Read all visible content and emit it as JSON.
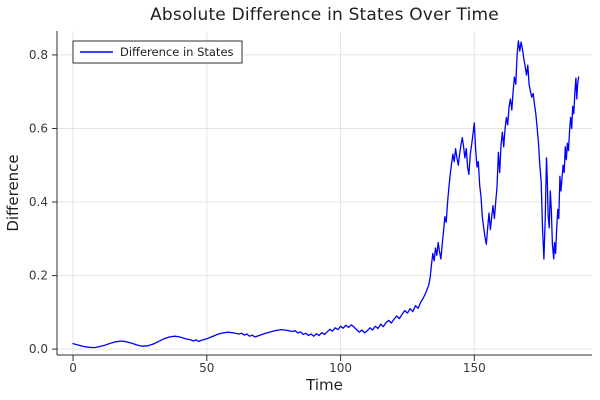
{
  "chart_data": {
    "type": "line",
    "title": "Absolute Difference in States Over Time",
    "xlabel": "Time",
    "ylabel": "Difference",
    "xlim": [
      -6,
      194
    ],
    "ylim": [
      -0.016,
      0.865
    ],
    "grid": true,
    "xticks": {
      "values": [
        0,
        50,
        100,
        150
      ],
      "labels": [
        "0",
        "50",
        "100",
        "150"
      ]
    },
    "yticks": {
      "values": [
        0.0,
        0.2,
        0.4,
        0.6,
        0.8
      ],
      "labels": [
        "0.0",
        "0.2",
        "0.4",
        "0.6",
        "0.8"
      ]
    },
    "legend": {
      "position": "top-left",
      "entries": [
        {
          "label": "Difference in States",
          "color": "#0000ff"
        }
      ]
    },
    "style": {
      "line_color": "#0000ff",
      "grid_color": "#e4e4e4",
      "axis_color": "#2f2f33",
      "text_color": "#1f1f1f",
      "tick_label_color": "#3a3a3a",
      "background": "#ffffff"
    },
    "series": [
      {
        "name": "Difference in States",
        "color": "#0000ff",
        "points": [
          [
            0,
            0.015
          ],
          [
            2,
            0.011
          ],
          [
            4,
            0.007
          ],
          [
            6,
            0.005
          ],
          [
            8,
            0.004
          ],
          [
            10,
            0.007
          ],
          [
            12,
            0.011
          ],
          [
            14,
            0.016
          ],
          [
            16,
            0.02
          ],
          [
            18,
            0.022
          ],
          [
            20,
            0.02
          ],
          [
            22,
            0.016
          ],
          [
            24,
            0.011
          ],
          [
            26,
            0.008
          ],
          [
            28,
            0.009
          ],
          [
            30,
            0.014
          ],
          [
            32,
            0.021
          ],
          [
            34,
            0.028
          ],
          [
            36,
            0.033
          ],
          [
            38,
            0.035
          ],
          [
            40,
            0.033
          ],
          [
            42,
            0.028
          ],
          [
            44,
            0.025
          ],
          [
            45,
            0.022
          ],
          [
            46,
            0.025
          ],
          [
            47,
            0.021
          ],
          [
            48,
            0.024
          ],
          [
            50,
            0.028
          ],
          [
            52,
            0.034
          ],
          [
            54,
            0.04
          ],
          [
            56,
            0.044
          ],
          [
            58,
            0.046
          ],
          [
            60,
            0.044
          ],
          [
            62,
            0.041
          ],
          [
            63,
            0.043
          ],
          [
            64,
            0.038
          ],
          [
            65,
            0.041
          ],
          [
            66,
            0.035
          ],
          [
            67,
            0.038
          ],
          [
            68,
            0.033
          ],
          [
            70,
            0.038
          ],
          [
            72,
            0.043
          ],
          [
            74,
            0.047
          ],
          [
            76,
            0.051
          ],
          [
            78,
            0.053
          ],
          [
            80,
            0.051
          ],
          [
            82,
            0.048
          ],
          [
            83,
            0.05
          ],
          [
            84,
            0.044
          ],
          [
            85,
            0.047
          ],
          [
            86,
            0.04
          ],
          [
            87,
            0.043
          ],
          [
            88,
            0.037
          ],
          [
            89,
            0.041
          ],
          [
            90,
            0.035
          ],
          [
            91,
            0.042
          ],
          [
            92,
            0.037
          ],
          [
            93,
            0.045
          ],
          [
            94,
            0.04
          ],
          [
            95,
            0.047
          ],
          [
            96,
            0.054
          ],
          [
            97,
            0.049
          ],
          [
            98,
            0.058
          ],
          [
            99,
            0.053
          ],
          [
            100,
            0.062
          ],
          [
            101,
            0.057
          ],
          [
            102,
            0.065
          ],
          [
            103,
            0.059
          ],
          [
            104,
            0.066
          ],
          [
            105,
            0.06
          ],
          [
            106,
            0.053
          ],
          [
            107,
            0.046
          ],
          [
            108,
            0.052
          ],
          [
            109,
            0.044
          ],
          [
            110,
            0.05
          ],
          [
            111,
            0.058
          ],
          [
            112,
            0.052
          ],
          [
            113,
            0.062
          ],
          [
            114,
            0.056
          ],
          [
            115,
            0.068
          ],
          [
            116,
            0.061
          ],
          [
            117,
            0.072
          ],
          [
            118,
            0.078
          ],
          [
            119,
            0.071
          ],
          [
            120,
            0.082
          ],
          [
            121,
            0.09
          ],
          [
            122,
            0.083
          ],
          [
            123,
            0.095
          ],
          [
            124,
            0.105
          ],
          [
            125,
            0.098
          ],
          [
            126,
            0.11
          ],
          [
            127,
            0.102
          ],
          [
            128,
            0.118
          ],
          [
            129,
            0.111
          ],
          [
            130,
            0.128
          ],
          [
            131,
            0.14
          ],
          [
            132,
            0.155
          ],
          [
            133,
            0.175
          ],
          [
            133.5,
            0.195
          ],
          [
            134,
            0.23
          ],
          [
            134.5,
            0.26
          ],
          [
            135,
            0.24
          ],
          [
            135.5,
            0.275
          ],
          [
            136,
            0.255
          ],
          [
            136.5,
            0.29
          ],
          [
            137,
            0.265
          ],
          [
            137.5,
            0.245
          ],
          [
            138,
            0.285
          ],
          [
            138.5,
            0.32
          ],
          [
            139,
            0.36
          ],
          [
            139.5,
            0.345
          ],
          [
            140,
            0.4
          ],
          [
            140.5,
            0.44
          ],
          [
            141,
            0.475
          ],
          [
            141.5,
            0.505
          ],
          [
            142,
            0.53
          ],
          [
            142.5,
            0.51
          ],
          [
            143,
            0.545
          ],
          [
            143.5,
            0.52
          ],
          [
            144,
            0.5
          ],
          [
            144.5,
            0.53
          ],
          [
            145,
            0.555
          ],
          [
            145.5,
            0.575
          ],
          [
            146,
            0.55
          ],
          [
            146.5,
            0.52
          ],
          [
            147,
            0.545
          ],
          [
            147.5,
            0.495
          ],
          [
            148,
            0.475
          ],
          [
            148.5,
            0.53
          ],
          [
            149,
            0.555
          ],
          [
            149.5,
            0.585
          ],
          [
            150,
            0.615
          ],
          [
            150.5,
            0.545
          ],
          [
            151,
            0.495
          ],
          [
            151.5,
            0.51
          ],
          [
            152,
            0.445
          ],
          [
            152.5,
            0.415
          ],
          [
            153,
            0.36
          ],
          [
            153.5,
            0.33
          ],
          [
            154,
            0.305
          ],
          [
            154.5,
            0.285
          ],
          [
            155,
            0.33
          ],
          [
            155.5,
            0.37
          ],
          [
            156,
            0.325
          ],
          [
            156.5,
            0.36
          ],
          [
            157,
            0.39
          ],
          [
            157.5,
            0.355
          ],
          [
            158,
            0.4
          ],
          [
            158.5,
            0.44
          ],
          [
            159,
            0.535
          ],
          [
            159.5,
            0.48
          ],
          [
            160,
            0.555
          ],
          [
            160.5,
            0.59
          ],
          [
            161,
            0.55
          ],
          [
            161.5,
            0.6
          ],
          [
            162,
            0.63
          ],
          [
            162.5,
            0.61
          ],
          [
            163,
            0.66
          ],
          [
            163.5,
            0.68
          ],
          [
            164,
            0.65
          ],
          [
            164.5,
            0.7
          ],
          [
            165,
            0.74
          ],
          [
            165.5,
            0.72
          ],
          [
            166,
            0.8
          ],
          [
            166.5,
            0.838
          ],
          [
            167,
            0.81
          ],
          [
            167.5,
            0.835
          ],
          [
            168,
            0.815
          ],
          [
            168.5,
            0.79
          ],
          [
            169,
            0.77
          ],
          [
            169.5,
            0.745
          ],
          [
            170,
            0.772
          ],
          [
            170.5,
            0.72
          ],
          [
            171,
            0.7
          ],
          [
            171.5,
            0.685
          ],
          [
            172,
            0.695
          ],
          [
            172.5,
            0.665
          ],
          [
            173,
            0.64
          ],
          [
            173.5,
            0.6
          ],
          [
            174,
            0.56
          ],
          [
            174.5,
            0.5
          ],
          [
            175,
            0.455
          ],
          [
            175.5,
            0.33
          ],
          [
            176,
            0.245
          ],
          [
            176.5,
            0.35
          ],
          [
            177,
            0.52
          ],
          [
            177.3,
            0.46
          ],
          [
            177.6,
            0.365
          ],
          [
            178,
            0.33
          ],
          [
            178.4,
            0.43
          ],
          [
            178.8,
            0.38
          ],
          [
            179.2,
            0.285
          ],
          [
            179.7,
            0.245
          ],
          [
            180,
            0.29
          ],
          [
            180.4,
            0.26
          ],
          [
            180.8,
            0.33
          ],
          [
            181.2,
            0.38
          ],
          [
            181.6,
            0.355
          ],
          [
            182,
            0.47
          ],
          [
            182.4,
            0.43
          ],
          [
            182.8,
            0.465
          ],
          [
            183.2,
            0.5
          ],
          [
            183.6,
            0.48
          ],
          [
            184,
            0.55
          ],
          [
            184.4,
            0.515
          ],
          [
            184.8,
            0.56
          ],
          [
            185.2,
            0.54
          ],
          [
            185.6,
            0.59
          ],
          [
            186,
            0.63
          ],
          [
            186.4,
            0.6
          ],
          [
            186.8,
            0.66
          ],
          [
            187.2,
            0.64
          ],
          [
            187.6,
            0.7
          ],
          [
            188,
            0.737
          ],
          [
            188.3,
            0.68
          ],
          [
            188.6,
            0.72
          ],
          [
            189,
            0.74
          ]
        ]
      }
    ]
  }
}
